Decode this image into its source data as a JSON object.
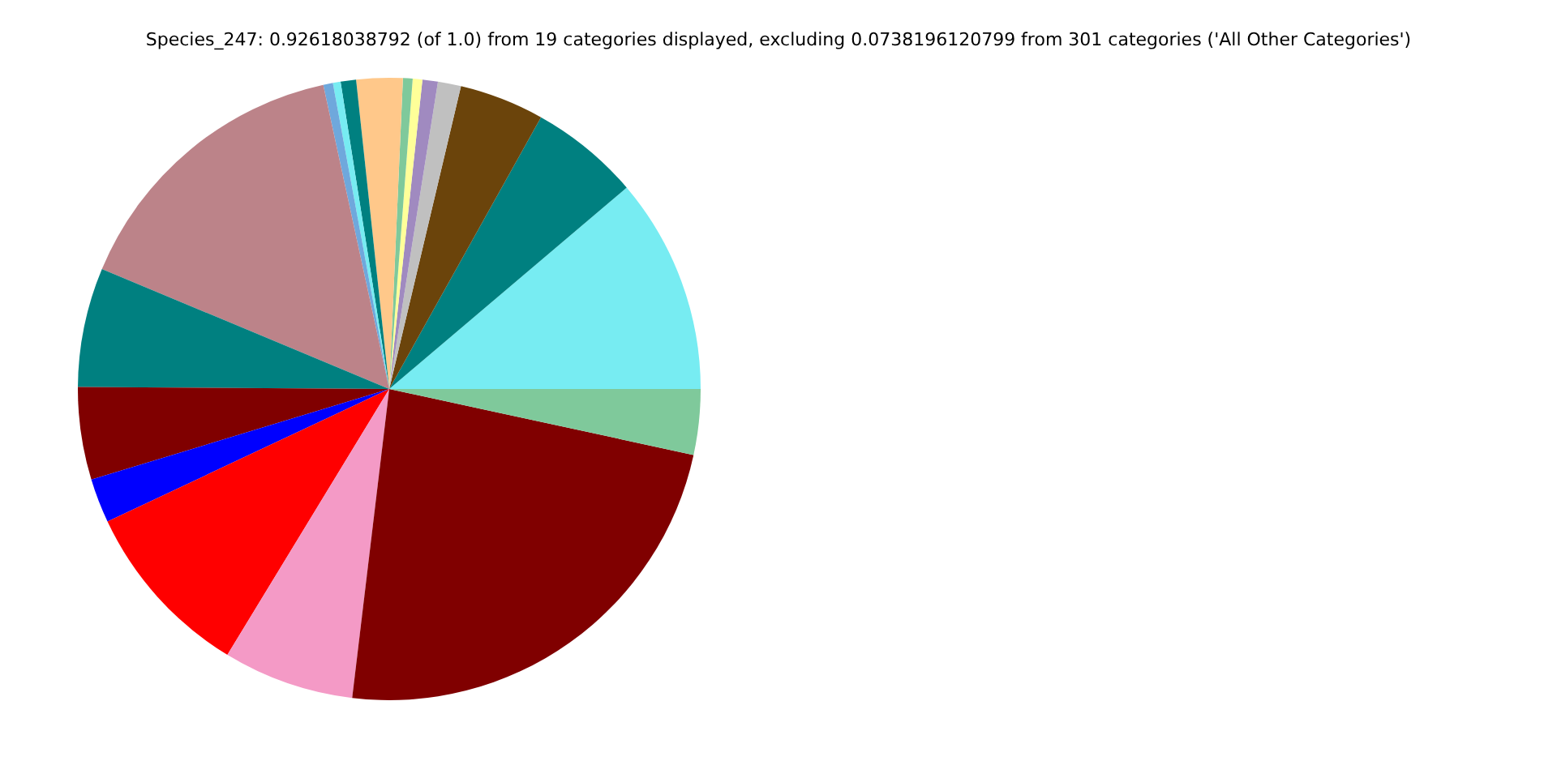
{
  "chart_data": {
    "type": "pie",
    "title": "Species_247: 0.92618038792 (of 1.0) from 19 categories displayed, excluding 0.0738196120799 from 301 categories ('All Other Categories')",
    "categories": [
      null,
      null,
      null,
      null,
      null,
      null,
      null,
      null,
      null,
      null,
      null,
      null,
      null,
      null,
      null,
      null,
      null,
      null,
      null
    ],
    "values": [
      11.2,
      5.7,
      4.4,
      1.2,
      0.8,
      0.5,
      0.5,
      2.4,
      0.8,
      0.4,
      0.5,
      15.3,
      6.2,
      4.8,
      2.3,
      9.3,
      6.8,
      23.5,
      3.4
    ],
    "colors": [
      "#77ecf2",
      "#008080",
      "#6b440b",
      "#c0c0c0",
      "#a08ac0",
      "#ffff99",
      "#7fc99b",
      "#ffc88a",
      "#008080",
      "#77ecf2",
      "#6fa8dc",
      "#bc8389",
      "#008080",
      "#800000",
      "#0000ff",
      "#ff0000",
      "#f49ac6",
      "#800000",
      "#7fc99b"
    ]
  }
}
